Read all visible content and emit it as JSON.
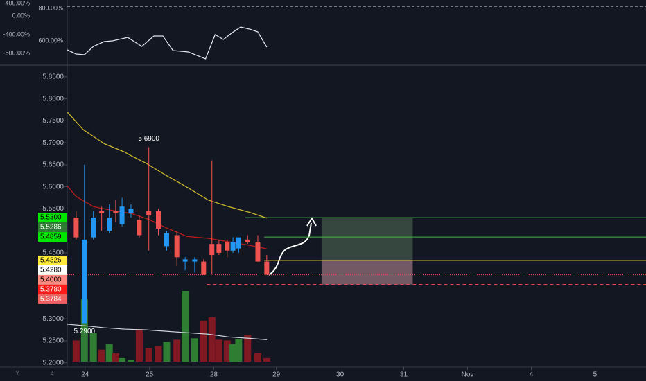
{
  "chart_data": {
    "type": "candlestick",
    "xlim": [
      -1.4,
      89.4
    ],
    "xticks": [
      {
        "value": 1.4,
        "label": "24"
      },
      {
        "value": 11.5,
        "label": "25"
      },
      {
        "value": 21.6,
        "label": "28"
      },
      {
        "value": 31.4,
        "label": "29"
      },
      {
        "value": 41.4,
        "label": "30"
      },
      {
        "value": 51.4,
        "label": "31"
      },
      {
        "value": 61.4,
        "label": "Nov"
      },
      {
        "value": 71.4,
        "label": "4"
      },
      {
        "value": 81.4,
        "label": "5"
      }
    ],
    "ylim": [
      5.19,
      5.875
    ],
    "yticks": [
      {
        "value": 5.2,
        "label": "5.2000"
      },
      {
        "value": 5.25,
        "label": "5.2500"
      },
      {
        "value": 5.3,
        "label": "5.3000"
      },
      {
        "value": 5.45,
        "label": "5.4500"
      },
      {
        "value": 5.55,
        "label": "5.5500"
      },
      {
        "value": 5.6,
        "label": "5.6000"
      },
      {
        "value": 5.65,
        "label": "5.6500"
      },
      {
        "value": 5.7,
        "label": "5.7000"
      },
      {
        "value": 5.75,
        "label": "5.7500"
      },
      {
        "value": 5.8,
        "label": "5.8000"
      },
      {
        "value": 5.85,
        "label": "5.8500"
      }
    ],
    "up_color": "#2196f3",
    "down_color": "#ef5350",
    "x": [
      0,
      1.3,
      2.7,
      4,
      5.2,
      6.2,
      7.2,
      8.6,
      9.9,
      11.4,
      12.9,
      14.2,
      15.8,
      17.1,
      18.6,
      20,
      21.3,
      22.4,
      23.7,
      24.6,
      25.5,
      26.9,
      28.5,
      29.9
    ],
    "open": [
      5.53,
      5.29,
      5.485,
      5.545,
      5.5,
      5.545,
      5.515,
      5.54,
      5.525,
      5.545,
      5.545,
      5.465,
      5.49,
      5.43,
      5.43,
      5.43,
      5.47,
      5.47,
      5.475,
      5.455,
      5.46,
      5.48,
      5.475,
      5.43
    ],
    "high": [
      5.545,
      5.65,
      5.545,
      5.555,
      5.56,
      5.57,
      5.575,
      5.56,
      5.535,
      5.69,
      5.55,
      5.5,
      5.5,
      5.44,
      5.44,
      5.435,
      5.66,
      5.48,
      5.48,
      5.485,
      5.48,
      5.49,
      5.49,
      5.445
    ],
    "low": [
      5.48,
      5.29,
      5.48,
      5.5,
      5.495,
      5.52,
      5.51,
      5.53,
      5.485,
      5.455,
      5.49,
      5.455,
      5.42,
      5.41,
      5.405,
      5.4,
      5.4,
      5.445,
      5.44,
      5.45,
      5.45,
      5.47,
      5.43,
      5.405
    ],
    "close": [
      5.485,
      5.48,
      5.53,
      5.54,
      5.53,
      5.54,
      5.555,
      5.55,
      5.49,
      5.535,
      5.505,
      5.495,
      5.44,
      5.435,
      5.435,
      5.4,
      5.445,
      5.45,
      5.455,
      5.475,
      5.485,
      5.475,
      5.43,
      5.4
    ],
    "volume": {
      "ylim": [
        0,
        100
      ],
      "up_color": "#2e7d32",
      "down_color": "#801922",
      "values": [
        30,
        88,
        41,
        17,
        25,
        12,
        5,
        2,
        46,
        19,
        22,
        28,
        31,
        100,
        33,
        58,
        63,
        31,
        30,
        25,
        32,
        38,
        12,
        5
      ],
      "ma": {
        "color": "#d1d4dc",
        "x": [
          -1.4,
          1.1,
          4.4,
          7.6,
          10.9,
          14.1,
          17.4,
          20.7,
          23.9,
          27.2,
          29.9
        ],
        "values": [
          53,
          51,
          48,
          46,
          45,
          43,
          41,
          39,
          35,
          33,
          31
        ]
      }
    },
    "lines": [
      {
        "color": "#c8b630",
        "x": [
          -1.4,
          1.1,
          4.4,
          7.6,
          8.7,
          10.9,
          14.1,
          17.4,
          20.7,
          23.9,
          27.2,
          29.9
        ],
        "values": [
          5.77,
          5.73,
          5.698,
          5.679,
          5.67,
          5.654,
          5.626,
          5.599,
          5.57,
          5.555,
          5.542,
          5.529
        ]
      },
      {
        "color": "#b71c1c",
        "x": [
          -1.4,
          0,
          2.7,
          5.4,
          8.7,
          11.4,
          14.1,
          17.4,
          20.7,
          23.9,
          27.2,
          29.9
        ],
        "values": [
          5.602,
          5.578,
          5.555,
          5.547,
          5.539,
          5.526,
          5.507,
          5.487,
          5.483,
          5.475,
          5.467,
          5.459
        ]
      }
    ],
    "levels": [
      {
        "value": 5.53,
        "from": 26.5,
        "color": "#4caf50",
        "style": "solid"
      },
      {
        "value": 5.4859,
        "from": 29.5,
        "color": "#4caf50",
        "style": "solid"
      },
      {
        "value": 5.4326,
        "from": 29.5,
        "color": "#c8b630",
        "style": "solid"
      },
      {
        "value": 5.4,
        "from": -1.4,
        "color": "#ef5350",
        "style": "dotted"
      },
      {
        "value": 5.378,
        "from": 20.5,
        "color": "#ef5350",
        "style": "dashed"
      }
    ],
    "position": {
      "x": [
        38.5,
        52.8
      ],
      "target": 5.53,
      "entry": 5.4326,
      "stop": 5.378
    },
    "price_labels": [
      {
        "value": 5.53,
        "label": "5.5300",
        "color": "#00e600",
        "text_color": "#000000"
      },
      {
        "value": 5.5286,
        "label": "5.5286",
        "color": "#2e7d32",
        "text_color": "#ffffff"
      },
      {
        "value": 5.4859,
        "label": "5.4859",
        "color": "#00e600",
        "text_color": "#000000"
      },
      {
        "value": 5.4326,
        "label": "5.4326",
        "color": "#ffeb3b",
        "text_color": "#000000"
      },
      {
        "value": 5.428,
        "label": "5.4280",
        "color": "#ffffff",
        "text_color": "#000000"
      },
      {
        "value": 5.4,
        "label": "5.4000",
        "color": "#ff8a80",
        "text_color": "#000000"
      },
      {
        "value": 5.378,
        "label": "5.3780",
        "color": "#ff1a1a",
        "text_color": "#ffffff"
      },
      {
        "value": 5.3784,
        "label": "5.3784",
        "color": "#ef6060",
        "text_color": "#ffffff"
      }
    ],
    "annotations": [
      {
        "text": "5.6900",
        "x": 11.4,
        "y": 5.69
      },
      {
        "text": "5.2900",
        "x": 1.3,
        "y": 5.29
      }
    ],
    "indicator": {
      "color": "#e0e3eb",
      "ylim": [
        -1067,
        341
      ],
      "yticks": [
        {
          "value": -800,
          "label": "-800.00%"
        },
        {
          "value": -400,
          "label": "-400.00%"
        },
        {
          "value": 0,
          "label": "0.00%"
        },
        {
          "value": 400,
          "label": "400.00%"
        }
      ],
      "y2lim": [
        447,
        851
      ],
      "y2ticks": [
        {
          "value": 600,
          "label": "600.00%"
        },
        {
          "value": 800,
          "label": "800.00%"
        }
      ],
      "x": [
        -1.4,
        0,
        1.3,
        2.7,
        4.4,
        5.7,
        8.1,
        10.3,
        12.2,
        13.6,
        15.2,
        17.6,
        20.3,
        21.8,
        23.1,
        24.5,
        25.8,
        27.2,
        28.5,
        29.9
      ],
      "values": [
        -726,
        -815,
        -830,
        -652,
        -548,
        -534,
        -460,
        -652,
        -430,
        -430,
        -741,
        -770,
        -918,
        -400,
        -504,
        -356,
        -238,
        -282,
        -341,
        -667
      ]
    },
    "footer": [
      "Y",
      "Z"
    ]
  }
}
